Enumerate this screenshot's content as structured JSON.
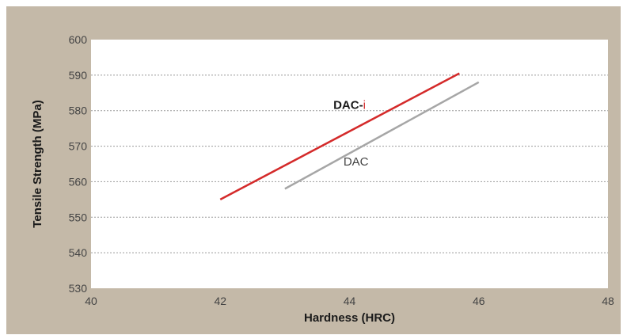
{
  "chart_data": {
    "type": "line",
    "title": "",
    "xlabel": "Hardness (HRC)",
    "ylabel": "Tensile Strength (MPa)",
    "xlim": [
      40,
      48
    ],
    "ylim": [
      530,
      600
    ],
    "xticks": [
      "40",
      "42",
      "44",
      "46",
      "48"
    ],
    "yticks": [
      "530",
      "540",
      "550",
      "560",
      "570",
      "580",
      "590",
      "600"
    ],
    "grid": "horizontal-dashed",
    "series": [
      {
        "name": "DAC-i",
        "name_prefix": "DAC-",
        "name_suffix": "i",
        "color": "#d42a2a",
        "suffix_color": "#d42a2a",
        "label_color": "#1a1a1a",
        "x": [
          42,
          45.7
        ],
        "y": [
          555,
          590.5
        ]
      },
      {
        "name": "DAC",
        "color": "#a6a6a6",
        "label_color": "#444444",
        "x": [
          43,
          46
        ],
        "y": [
          558,
          588
        ]
      }
    ]
  },
  "colors": {
    "background": "#c4b9a8",
    "plot_area": "#ffffff",
    "grid": "#9a9a9a"
  }
}
